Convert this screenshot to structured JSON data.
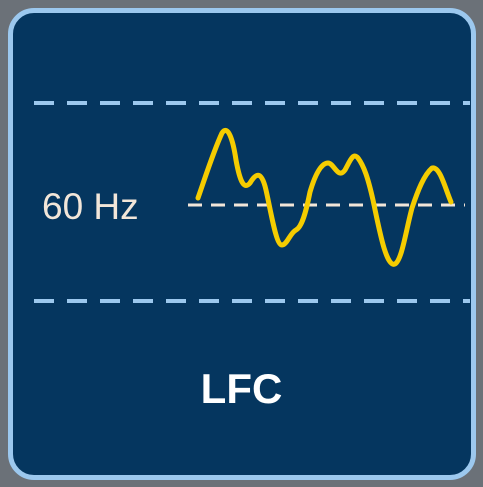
{
  "frequency_label": "60 Hz",
  "title": "LFC",
  "colors": {
    "background": "#05365f",
    "border": "#9cc8ee",
    "band_lines": "#9cc8ee",
    "reference_line": "#f2e6d9",
    "signal": "#f5cc00"
  }
}
